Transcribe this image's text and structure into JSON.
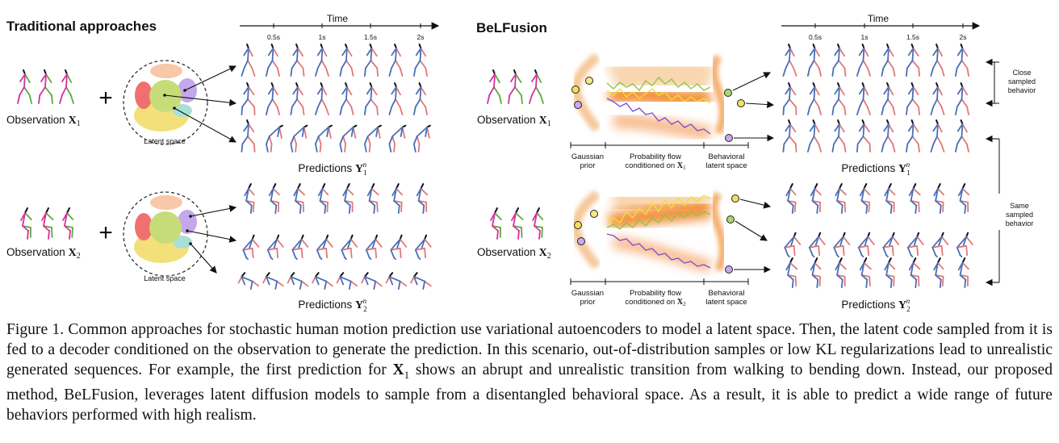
{
  "left_panel": {
    "title": "Traditional approaches",
    "time_label": "Time",
    "ticks": [
      "0.5s",
      "1s",
      "1.5s",
      "2s"
    ],
    "obs1_label": "Observation",
    "obs1_math": "X",
    "obs1_sub": "1",
    "obs2_label": "Observation",
    "obs2_math": "X",
    "obs2_sub": "2",
    "latent_label": "Latent space",
    "pred1_label": "Predictions",
    "pred1_math": "Y",
    "pred1_sub": "1",
    "pred1_sup": "n",
    "pred2_label": "Predictions",
    "pred2_math": "Y",
    "pred2_sub": "2",
    "pred2_sup": "n",
    "plus": "+"
  },
  "right_panel": {
    "title": "BeLFusion",
    "time_label": "Time",
    "ticks": [
      "0.5s",
      "1s",
      "1.5s",
      "2s"
    ],
    "obs1_label": "Observation",
    "obs1_math": "X",
    "obs1_sub": "1",
    "obs2_label": "Observation",
    "obs2_math": "X",
    "obs2_sub": "2",
    "gaussian_l1": "Gaussian",
    "gaussian_l2": "prior",
    "flow_l1": "Probability flow",
    "flow_l2_1": "conditioned on",
    "flow_l2_2": "conditioned on",
    "flow_math": "X",
    "flow_sub1": "1",
    "flow_sub2": "2",
    "behav_l1": "Behavioral",
    "behav_l2": "latent space",
    "pred1_label": "Predictions",
    "pred1_math": "Y",
    "pred1_sub": "1",
    "pred1_sup": "n",
    "pred2_label": "Predictions",
    "pred2_math": "Y",
    "pred2_sub": "2",
    "pred2_sup": "n",
    "close_l1": "Close",
    "close_l2": "sampled",
    "close_l3": "behavior",
    "same_l1": "Same",
    "same_l2": "sampled",
    "same_l3": "behavior"
  },
  "caption": {
    "p1": "Figure 1. Common approaches for stochastic human motion prediction use variational autoencoders to model a latent space. Then, the latent code sampled from it is fed to a decoder conditioned on the observation to generate the prediction. In this scenario, out-of-distribution samples or low KL regularizations lead to unrealistic generated sequences. For example, the first prediction for ",
    "math": "X",
    "sub": "1",
    "p2": " shows an abrupt and unrealistic transition from walking to bending down. Instead, our proposed method, BeLFusion, leverages latent diffusion models to sample from a disentangled behavioral space. As a result, it is able to predict a wide range of future behaviors performed with high realism."
  },
  "colors": {
    "skel_blue": "#4a6db5",
    "skel_red": "#e07878",
    "obs_green": "#5aaa3a",
    "obs_magenta": "#d6309a",
    "latent_green": "#c6dc78",
    "latent_red": "#f07070",
    "latent_purple": "#c4a8ec",
    "latent_yellow": "#f4e07a",
    "latent_peach": "#f8c8a8",
    "latent_teal": "#a8e0d8",
    "flow_orange": "#f08020",
    "path_green": "#8ec63f",
    "path_yellow": "#f0e030",
    "path_purple": "#8050d0"
  }
}
